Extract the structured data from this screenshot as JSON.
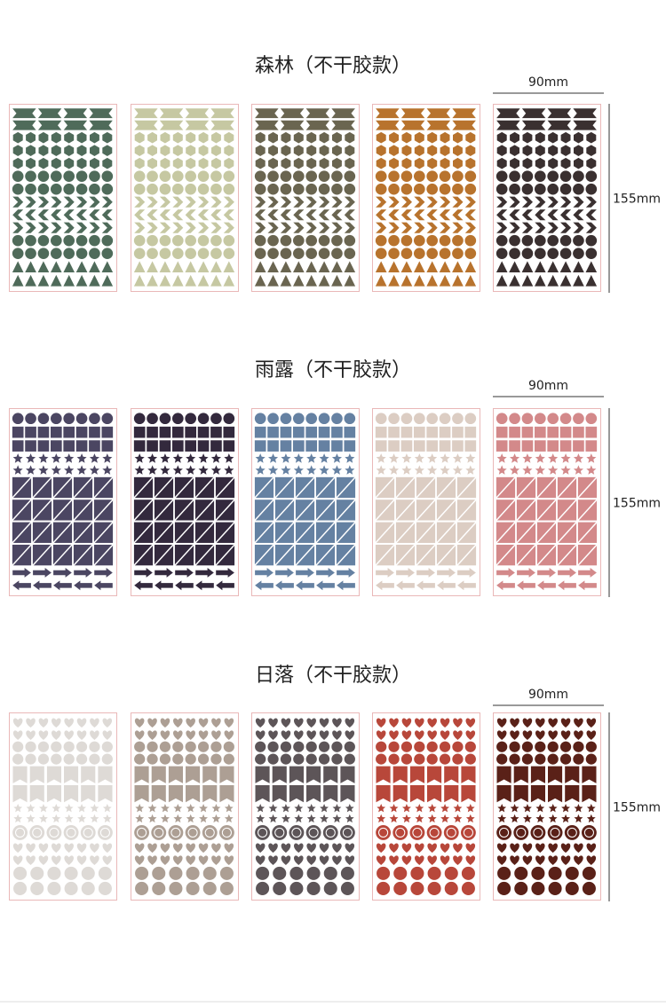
{
  "sections": [
    {
      "title": "森林（不干胶款）",
      "width_label": "90mm",
      "height_label": "155mm",
      "sheet_colors": [
        "#4f6b5a",
        "#c6c8a2",
        "#6a6550",
        "#b8732d",
        "#3a3030"
      ]
    },
    {
      "title": "雨露（不干胶款）",
      "width_label": "90mm",
      "height_label": "155mm",
      "sheet_colors": [
        "#4b4662",
        "#33293d",
        "#6581a2",
        "#dccdc3",
        "#d3898a"
      ]
    },
    {
      "title": "日落（不干胶款）",
      "width_label": "90mm",
      "height_label": "155mm",
      "sheet_colors": [
        "#dedad6",
        "#ad9f94",
        "#5d5558",
        "#b8473a",
        "#5a2118"
      ]
    }
  ]
}
